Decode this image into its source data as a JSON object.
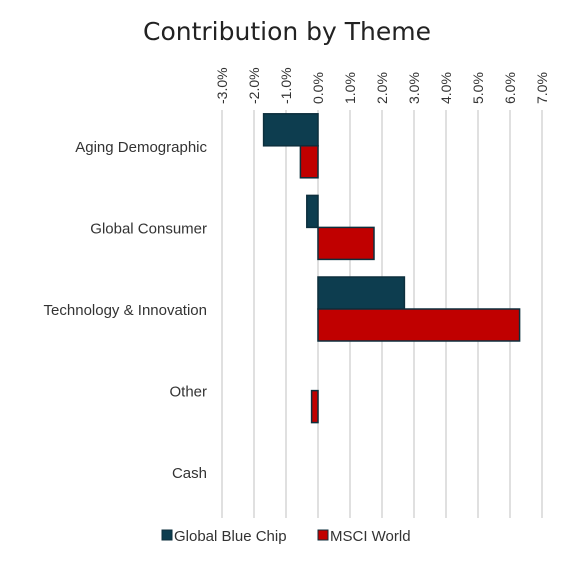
{
  "chart_data": {
    "type": "bar",
    "orientation": "horizontal",
    "title": "Contribution by Theme",
    "categories": [
      "Aging Demographic",
      "Global Consumer",
      "Technology & Innovation",
      "Other",
      "Cash"
    ],
    "series": [
      {
        "name": "Global Blue Chip",
        "color": "#0d3d4f",
        "values": [
          -1.7,
          -0.35,
          2.7,
          0.0,
          0.0
        ]
      },
      {
        "name": "MSCI World",
        "color": "#c00000",
        "values": [
          -0.55,
          1.75,
          6.3,
          -0.2,
          0.0
        ]
      }
    ],
    "xlim": [
      -3.0,
      7.0
    ],
    "x_ticks": [
      -3,
      -2,
      -1,
      0,
      1,
      2,
      3,
      4,
      5,
      6,
      7
    ],
    "x_tick_labels": [
      "-3.0%",
      "-2.0%",
      "-1.0%",
      "0.0%",
      "1.0%",
      "2.0%",
      "3.0%",
      "4.0%",
      "5.0%",
      "6.0%",
      "7.0%"
    ],
    "x_axis_position": "top",
    "grid": true,
    "legend_position": "bottom"
  }
}
